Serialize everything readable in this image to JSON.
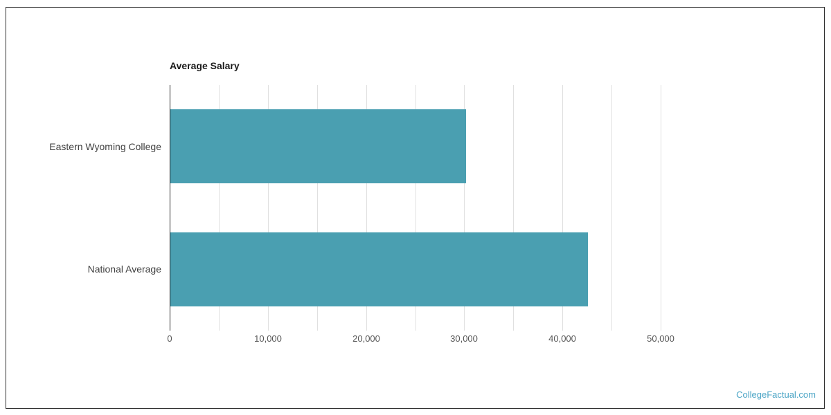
{
  "chart_data": {
    "type": "bar",
    "orientation": "horizontal",
    "title": "Average Salary",
    "categories": [
      "Eastern Wyoming College",
      "National Average"
    ],
    "values": [
      30100,
      42500
    ],
    "xlim": [
      0,
      55000
    ],
    "ticks": [
      {
        "value": 0,
        "label": "0"
      },
      {
        "value": 10000,
        "label": "10,000"
      },
      {
        "value": 20000,
        "label": "20,000"
      },
      {
        "value": 30000,
        "label": "30,000"
      },
      {
        "value": 40000,
        "label": "40,000"
      },
      {
        "value": 50000,
        "label": "50,000"
      }
    ],
    "minor_gridline_step": 5000,
    "grid": true,
    "legend": false,
    "bar_color": "#4A9FB1",
    "axis_color": "#222222",
    "gridline_color": "#e0e0e0",
    "ylabel": "",
    "xlabel": ""
  },
  "watermark": {
    "text": "CollegeFactual.com",
    "color": "#4AA4C5"
  }
}
